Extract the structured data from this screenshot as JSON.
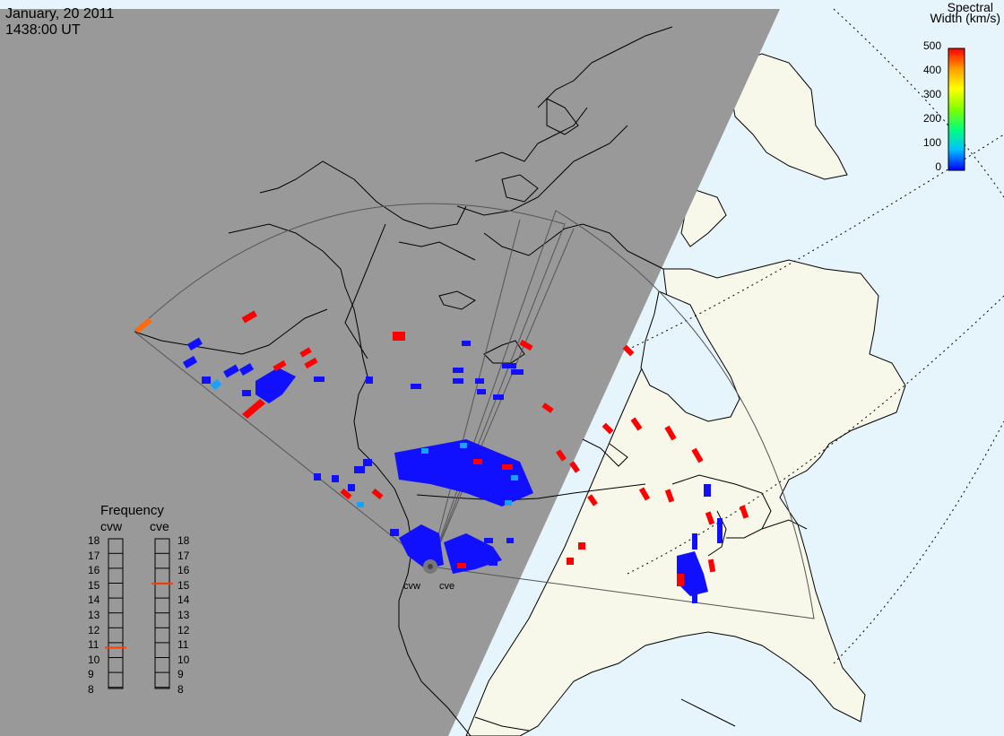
{
  "header": {
    "date": "January, 20 2011",
    "time": "1438:00 UT"
  },
  "colorbar": {
    "title_line1": "Spectral",
    "title_line2": "Width (km/s)",
    "ticks": [
      "500",
      "400",
      "300",
      "200",
      "100",
      "0"
    ],
    "stops": [
      "#0000ff",
      "#00c0ff",
      "#00ff80",
      "#80ff00",
      "#ffff00",
      "#ffa000",
      "#ff0000"
    ]
  },
  "frequency_panel": {
    "title": "Frequency",
    "left_label": "cvw",
    "right_label": "cve",
    "ticks": [
      "18",
      "17",
      "16",
      "15",
      "14",
      "13",
      "12",
      "11",
      "10",
      "9",
      "8"
    ],
    "cvw_marker": 10.8,
    "cve_marker": 15.1,
    "marker_color": "#ff4000"
  },
  "radars": [
    {
      "name": "cvw"
    },
    {
      "name": "cve"
    }
  ],
  "colors": {
    "night": "#999999",
    "land_day": "#f7f7ea",
    "ocean_day": "#e6f4fb",
    "low_width": "#1010ff",
    "high_width": "#ff0000",
    "mid_width": "#1aa0ff",
    "orange": "#ff6a10"
  }
}
